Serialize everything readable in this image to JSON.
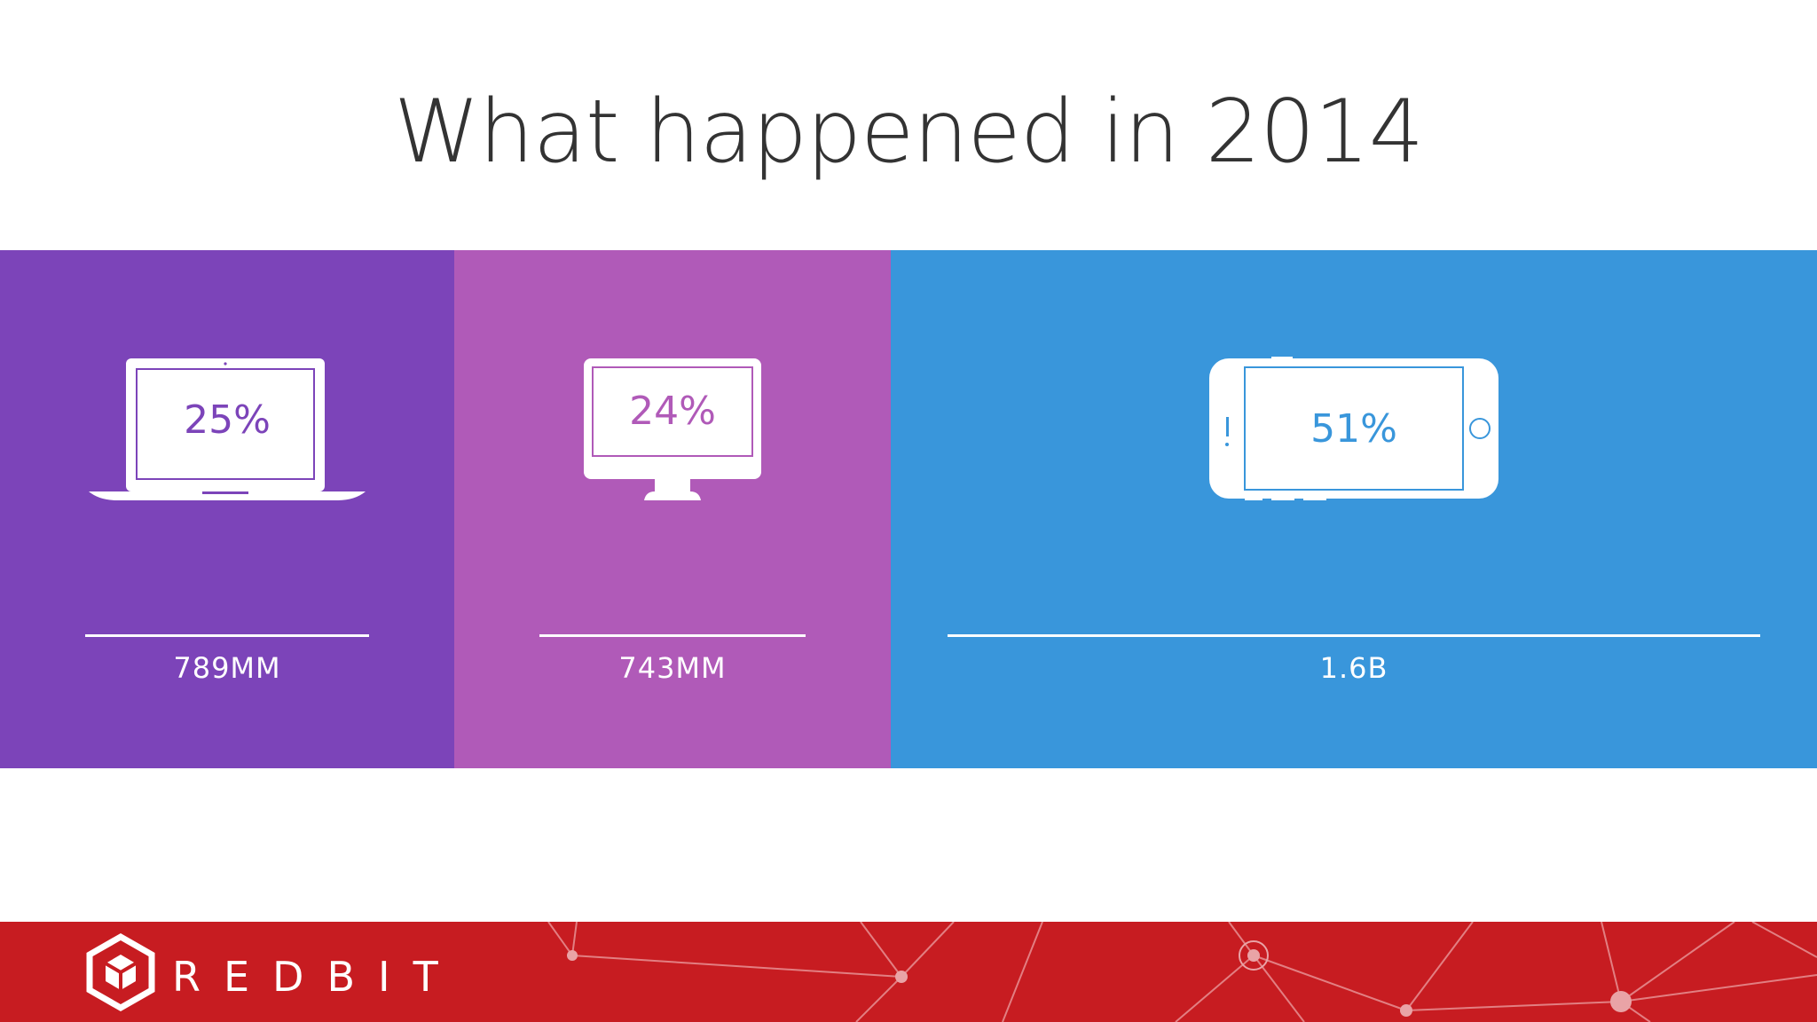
{
  "title": "What happened in 2014",
  "brand": {
    "name": "REDBIT",
    "logo": "hexagon-cube-logo"
  },
  "colors": {
    "laptop": "#7c44b9",
    "desktop": "#b05ab8",
    "mobile": "#3996db",
    "footer": "#c71c21"
  },
  "chart_data": {
    "type": "bar",
    "categories": [
      "laptop",
      "desktop",
      "mobile"
    ],
    "values": [
      25,
      24,
      51
    ],
    "value_labels": [
      "25%",
      "24%",
      "51%"
    ],
    "count_labels": [
      "789MM",
      "743MM",
      "1.6B"
    ],
    "icons": [
      "laptop-icon",
      "desktop-icon",
      "smartphone-icon"
    ],
    "title": "What happened in 2014",
    "xlabel": "",
    "ylabel": ""
  }
}
